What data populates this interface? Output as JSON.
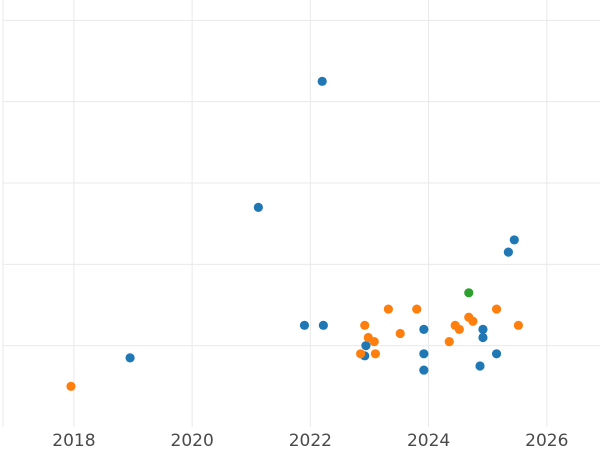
{
  "chart_data": {
    "type": "scatter",
    "title": "",
    "xlabel": "",
    "ylabel": "",
    "xlim": [
      2016.8,
      2026.9
    ],
    "ylim": [
      0,
      10.5
    ],
    "x_ticks": [
      2018,
      2020,
      2022,
      2024,
      2026
    ],
    "x_tick_labels": [
      "2018",
      "2020",
      "2022",
      "2024",
      "2026"
    ],
    "y_ticks": [
      2,
      4,
      6,
      8,
      10
    ],
    "y_tick_labels": [],
    "grid": true,
    "legend": "none",
    "series": [
      {
        "color": "#1f77b4",
        "points": [
          {
            "x": 2018.95,
            "y": 1.7
          },
          {
            "x": 2021.12,
            "y": 5.4
          },
          {
            "x": 2021.9,
            "y": 2.5
          },
          {
            "x": 2022.2,
            "y": 8.5
          },
          {
            "x": 2022.22,
            "y": 2.5
          },
          {
            "x": 2022.92,
            "y": 1.75
          },
          {
            "x": 2022.94,
            "y": 2.0
          },
          {
            "x": 2023.92,
            "y": 2.4
          },
          {
            "x": 2023.92,
            "y": 1.8
          },
          {
            "x": 2023.92,
            "y": 1.4
          },
          {
            "x": 2024.87,
            "y": 1.5
          },
          {
            "x": 2024.92,
            "y": 2.4
          },
          {
            "x": 2024.92,
            "y": 2.2
          },
          {
            "x": 2025.15,
            "y": 1.8
          },
          {
            "x": 2025.35,
            "y": 4.3
          },
          {
            "x": 2025.45,
            "y": 4.6
          }
        ]
      },
      {
        "color": "#ff7f0e",
        "points": [
          {
            "x": 2017.95,
            "y": 1.0
          },
          {
            "x": 2022.85,
            "y": 1.8
          },
          {
            "x": 2022.92,
            "y": 2.5
          },
          {
            "x": 2022.98,
            "y": 2.2
          },
          {
            "x": 2023.08,
            "y": 2.1
          },
          {
            "x": 2023.1,
            "y": 1.8
          },
          {
            "x": 2023.32,
            "y": 2.9
          },
          {
            "x": 2023.52,
            "y": 2.3
          },
          {
            "x": 2023.8,
            "y": 2.9
          },
          {
            "x": 2024.35,
            "y": 2.1
          },
          {
            "x": 2024.45,
            "y": 2.5
          },
          {
            "x": 2024.52,
            "y": 2.4
          },
          {
            "x": 2024.68,
            "y": 2.7
          },
          {
            "x": 2024.75,
            "y": 2.6
          },
          {
            "x": 2025.15,
            "y": 2.9
          },
          {
            "x": 2025.52,
            "y": 2.5
          }
        ]
      },
      {
        "color": "#2ca02c",
        "points": [
          {
            "x": 2024.68,
            "y": 3.3
          }
        ]
      }
    ]
  }
}
